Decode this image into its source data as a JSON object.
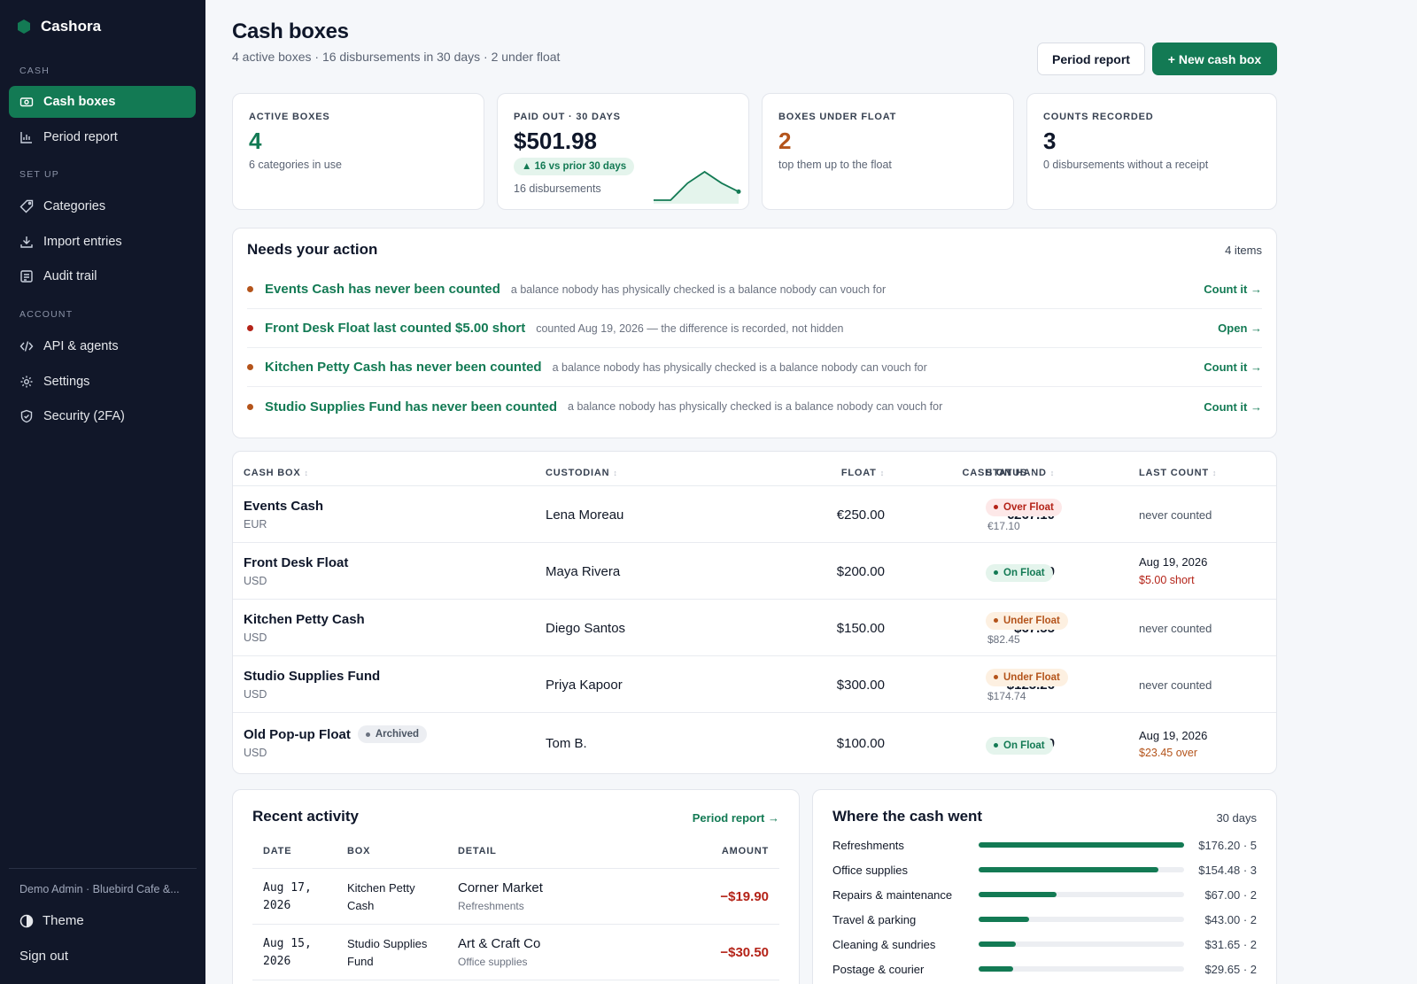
{
  "brand": {
    "name": "Cashora",
    "color": "#137a54"
  },
  "sidebar": {
    "sections": [
      {
        "title": "CASH",
        "items": [
          {
            "label": "Cash boxes",
            "icon": "cash-icon",
            "active": true
          },
          {
            "label": "Period report",
            "icon": "bar-chart-icon"
          }
        ]
      },
      {
        "title": "SET UP",
        "items": [
          {
            "label": "Categories",
            "icon": "tag-icon"
          },
          {
            "label": "Import entries",
            "icon": "download-icon"
          },
          {
            "label": "Audit trail",
            "icon": "list-icon"
          }
        ]
      },
      {
        "title": "ACCOUNT",
        "items": [
          {
            "label": "API & agents",
            "icon": "code-icon"
          },
          {
            "label": "Settings",
            "icon": "gear-icon"
          },
          {
            "label": "Security (2FA)",
            "icon": "shield-icon"
          }
        ]
      }
    ],
    "user": "Demo Admin · Bluebird Cafe &...",
    "theme_label": "Theme",
    "signout_label": "Sign out"
  },
  "header": {
    "title": "Cash boxes",
    "subtitle": "4 active boxes · 16 disbursements in 30 days · 2 under float",
    "period_report_label": "Period report",
    "new_box_label": "+ New cash box"
  },
  "stats": [
    {
      "label": "ACTIVE BOXES",
      "value": "4",
      "note": "6 categories in use",
      "color": "#137a54"
    },
    {
      "label": "PAID OUT · 30 DAYS",
      "value": "$501.98",
      "badge": "▲ 16 vs prior 30 days",
      "note": "16 disbursements",
      "color": "#0f172a",
      "sparkline": [
        0,
        0,
        3,
        5,
        3,
        1.5
      ]
    },
    {
      "label": "BOXES UNDER FLOAT",
      "value": "2",
      "note": "top them up to the float",
      "color": "#b4541b"
    },
    {
      "label": "COUNTS RECORDED",
      "value": "3",
      "note": "0 disbursements without a receipt",
      "color": "#0f172a"
    }
  ],
  "actions": {
    "title": "Needs your action",
    "count": "4 items",
    "items": [
      {
        "head": "Events Cash has never been counted",
        "detail": "a balance nobody has physically checked is a balance nobody can vouch for",
        "link": "Count it →",
        "dot": "#b4541b"
      },
      {
        "head": "Front Desk Float last counted $5.00 short",
        "detail": "counted Aug 19, 2026 — the difference is recorded, not hidden",
        "link": "Open →",
        "dot": "#b42318"
      },
      {
        "head": "Kitchen Petty Cash has never been counted",
        "detail": "a balance nobody has physically checked is a balance nobody can vouch for",
        "link": "Count it →",
        "dot": "#b4541b"
      },
      {
        "head": "Studio Supplies Fund has never been counted",
        "detail": "a balance nobody has physically checked is a balance nobody can vouch for",
        "link": "Count it →",
        "dot": "#b4541b"
      }
    ]
  },
  "table": {
    "headers": {
      "box": "CASH BOX",
      "custodian": "CUSTODIAN",
      "float": "FLOAT",
      "cash": "CASH ON HAND",
      "status": "STATUS",
      "last": "LAST COUNT"
    },
    "sort_icon": "↕",
    "rows": [
      {
        "name": "Events Cash",
        "currency": "EUR",
        "custodian": "Lena Moreau",
        "float": "€250.00",
        "cash": "€267.10",
        "status": "Over Float",
        "status_kind": "over",
        "status_sub": "€17.10",
        "last": "never counted",
        "last_sub": "",
        "last_kind": ""
      },
      {
        "name": "Front Desk Float",
        "currency": "USD",
        "custodian": "Maya Rivera",
        "float": "$200.00",
        "cash": "$200.00",
        "status": "On Float",
        "status_kind": "on",
        "status_sub": "",
        "last": "Aug 19, 2026",
        "last_sub": "$5.00 short",
        "last_kind": "short"
      },
      {
        "name": "Kitchen Petty Cash",
        "currency": "USD",
        "custodian": "Diego Santos",
        "float": "$150.00",
        "cash": "$67.55",
        "status": "Under Float",
        "status_kind": "under",
        "status_sub": "$82.45",
        "last": "never counted",
        "last_sub": "",
        "last_kind": ""
      },
      {
        "name": "Studio Supplies Fund",
        "currency": "USD",
        "custodian": "Priya Kapoor",
        "float": "$300.00",
        "cash": "$125.26",
        "status": "Under Float",
        "status_kind": "under",
        "status_sub": "$174.74",
        "last": "never counted",
        "last_sub": "",
        "last_kind": ""
      },
      {
        "name": "Old Pop-up Float",
        "badge": "Archived",
        "currency": "USD",
        "custodian": "Tom B.",
        "float": "$100.00",
        "cash": "$100.00",
        "status": "On Float",
        "status_kind": "on",
        "status_sub": "",
        "last": "Aug 19, 2026",
        "last_sub": "$23.45 over",
        "last_kind": "over"
      }
    ]
  },
  "recent": {
    "title": "Recent activity",
    "link": "Period report →",
    "headers": {
      "date": "DATE",
      "box": "BOX",
      "detail": "DETAIL",
      "amount": "AMOUNT"
    },
    "rows": [
      {
        "date1": "Aug 17,",
        "date2": "2026",
        "box1": "Kitchen Petty",
        "box2": "Cash",
        "payee": "Corner Market",
        "category": "Refreshments",
        "amount": "−$19.90"
      },
      {
        "date1": "Aug 15,",
        "date2": "2026",
        "box1": "Studio Supplies",
        "box2": "Fund",
        "payee": "Art & Craft Co",
        "category": "Office supplies",
        "amount": "−$30.50"
      }
    ]
  },
  "where": {
    "title": "Where the cash went",
    "meta": "30 days",
    "rows": [
      {
        "name": "Refreshments",
        "fraction": 1.0,
        "value": "$176.20 · 5"
      },
      {
        "name": "Office supplies",
        "fraction": 0.877,
        "value": "$154.48 · 3"
      },
      {
        "name": "Repairs & maintenance",
        "fraction": 0.38,
        "value": "$67.00 · 2"
      },
      {
        "name": "Travel & parking",
        "fraction": 0.244,
        "value": "$43.00 · 2"
      },
      {
        "name": "Cleaning & sundries",
        "fraction": 0.18,
        "value": "$31.65 · 2"
      },
      {
        "name": "Postage & courier",
        "fraction": 0.168,
        "value": "$29.65 · 2"
      }
    ]
  }
}
